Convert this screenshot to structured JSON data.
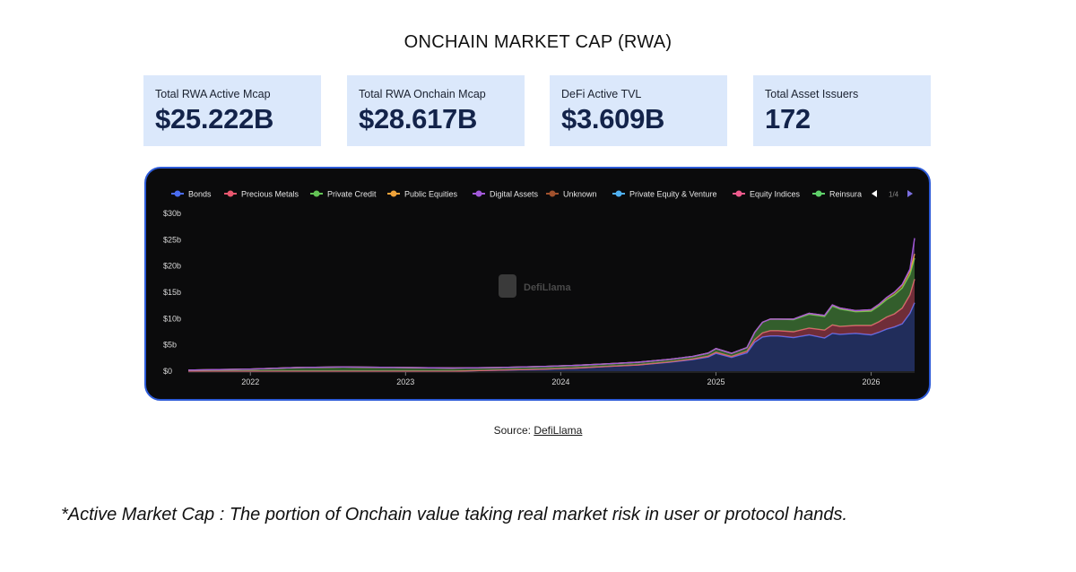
{
  "page": {
    "title": "ONCHAIN MARKET CAP (RWA)",
    "source_prefix": "Source:",
    "source_link": "DefiLlama",
    "footnote": "*Active Market Cap : The portion of Onchain value taking real market risk in user or protocol hands."
  },
  "stats": [
    {
      "label": "Total RWA Active Mcap",
      "value": "$25.222B"
    },
    {
      "label": "Total RWA Onchain Mcap",
      "value": "$28.617B"
    },
    {
      "label": "DeFi Active TVL",
      "value": "$3.609B"
    },
    {
      "label": "Total Asset Issuers",
      "value": "172"
    }
  ],
  "chart_data": {
    "type": "area",
    "stacked": true,
    "watermark": "DefiLlama",
    "legend_page": "1/4",
    "legend_placement": "top",
    "grid": false,
    "y_unit": "$b",
    "ylim": [
      0,
      30
    ],
    "yticks": [
      "$0",
      "$5b",
      "$10b",
      "$15b",
      "$20b",
      "$25b",
      "$30b"
    ],
    "ytick_values": [
      0,
      5,
      10,
      15,
      20,
      25,
      30
    ],
    "xlim": [
      2021.6,
      2026.28
    ],
    "xticks": [
      "2022",
      "2023",
      "2024",
      "2025",
      "2026"
    ],
    "xtick_values": [
      2022.0,
      2023.0,
      2024.0,
      2025.0,
      2026.0
    ],
    "x": [
      2021.6,
      2021.8,
      2022.0,
      2022.3,
      2022.6,
      2023.0,
      2023.3,
      2023.6,
      2023.9,
      2024.1,
      2024.3,
      2024.5,
      2024.7,
      2024.85,
      2024.95,
      2025.0,
      2025.1,
      2025.2,
      2025.25,
      2025.3,
      2025.35,
      2025.4,
      2025.5,
      2025.6,
      2025.7,
      2025.75,
      2025.8,
      2025.9,
      2026.0,
      2026.05,
      2026.1,
      2026.15,
      2026.2,
      2026.25,
      2026.28
    ],
    "series": [
      {
        "name": "Bonds",
        "color": "#4a6cf0",
        "values": [
          0,
          0,
          0,
          0,
          0,
          0,
          0,
          0.2,
          0.4,
          0.6,
          0.9,
          1.2,
          1.7,
          2.2,
          2.7,
          3.4,
          2.6,
          3.5,
          5.5,
          6.5,
          6.7,
          6.7,
          6.4,
          6.9,
          6.3,
          7.2,
          7.0,
          7.2,
          6.9,
          7.4,
          8.0,
          8.4,
          9.0,
          11.0,
          13.0
        ]
      },
      {
        "name": "Precious Metals",
        "color": "#e8576e",
        "values": [
          0,
          0,
          0,
          0,
          0,
          0,
          0,
          0,
          0,
          0,
          0,
          0,
          0.05,
          0.1,
          0.15,
          0.2,
          0.2,
          0.3,
          0.5,
          0.8,
          1.0,
          1.0,
          1.1,
          1.3,
          1.5,
          1.6,
          1.5,
          1.5,
          1.8,
          2.0,
          2.3,
          2.5,
          3.0,
          3.5,
          4.5
        ]
      },
      {
        "name": "Private Credit",
        "color": "#63c355",
        "values": [
          0.2,
          0.3,
          0.4,
          0.7,
          0.8,
          0.7,
          0.6,
          0.5,
          0.5,
          0.5,
          0.5,
          0.5,
          0.5,
          0.5,
          0.6,
          0.7,
          0.6,
          0.7,
          1.4,
          2.0,
          2.2,
          2.2,
          2.3,
          2.6,
          2.6,
          3.6,
          3.3,
          2.6,
          2.7,
          3.0,
          3.3,
          3.6,
          3.8,
          3.9,
          4.0
        ]
      },
      {
        "name": "Public Equities",
        "color": "#f0a33a",
        "values": [
          0,
          0,
          0,
          0,
          0,
          0,
          0,
          0,
          0,
          0,
          0,
          0,
          0,
          0,
          0,
          0,
          0,
          0,
          0,
          0,
          0,
          0,
          0.1,
          0.2,
          0.2,
          0.2,
          0.2,
          0.2,
          0.3,
          0.3,
          0.4,
          0.5,
          0.6,
          0.7,
          0.8
        ]
      },
      {
        "name": "Digital Assets",
        "color": "#a259d9",
        "values": [
          0,
          0,
          0,
          0,
          0,
          0,
          0,
          0,
          0,
          0,
          0,
          0,
          0,
          0,
          0,
          0,
          0,
          0,
          0,
          0,
          0,
          0,
          0,
          0,
          0,
          0,
          0,
          0,
          0,
          0,
          0,
          0,
          0.1,
          0.3,
          3.0
        ]
      },
      {
        "name": "Unknown",
        "color": "#a0512d",
        "values": [
          0,
          0,
          0,
          0,
          0,
          0,
          0,
          0,
          0,
          0,
          0,
          0,
          0,
          0,
          0,
          0,
          0,
          0,
          0,
          0,
          0,
          0,
          0,
          0,
          0,
          0,
          0,
          0,
          0,
          0,
          0,
          0,
          0,
          0,
          0
        ]
      },
      {
        "name": "Private Equity & Venture",
        "color": "#4fb0f2",
        "values": [
          0,
          0,
          0,
          0,
          0,
          0,
          0,
          0,
          0,
          0,
          0,
          0,
          0,
          0,
          0,
          0,
          0,
          0,
          0,
          0,
          0,
          0,
          0,
          0,
          0,
          0,
          0,
          0,
          0,
          0,
          0,
          0,
          0,
          0,
          0
        ]
      },
      {
        "name": "Equity Indices",
        "color": "#ee5a8c",
        "values": [
          0,
          0,
          0,
          0,
          0,
          0,
          0,
          0,
          0,
          0,
          0,
          0,
          0,
          0,
          0,
          0,
          0,
          0,
          0,
          0,
          0,
          0,
          0,
          0,
          0,
          0,
          0,
          0,
          0,
          0,
          0,
          0,
          0,
          0,
          0
        ]
      },
      {
        "name": "Reinsurance",
        "legend_label": "Reinsura",
        "color": "#5fd06a",
        "values": [
          0,
          0,
          0,
          0,
          0,
          0,
          0,
          0,
          0,
          0,
          0,
          0,
          0,
          0,
          0,
          0,
          0,
          0,
          0,
          0,
          0,
          0,
          0,
          0,
          0,
          0,
          0,
          0,
          0,
          0,
          0,
          0,
          0,
          0,
          0
        ]
      }
    ]
  }
}
